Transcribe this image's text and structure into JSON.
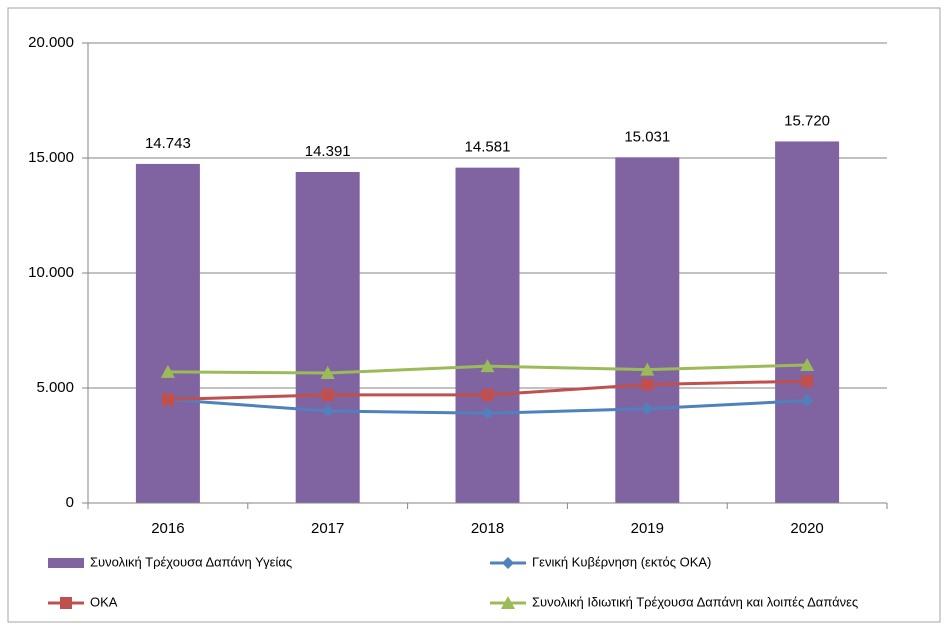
{
  "chart_data": {
    "type": "bar",
    "categories": [
      "2016",
      "2017",
      "2018",
      "2019",
      "2020"
    ],
    "series": [
      {
        "name": "Συνολική Τρέχουσα Δαπάνη Υγείας",
        "type": "bar",
        "color": "#8064a2",
        "marker": "none",
        "values": [
          14743,
          14391,
          14581,
          15031,
          15720
        ],
        "value_labels": [
          "14.743",
          "14.391",
          "14.581",
          "15.031",
          "15.720"
        ]
      },
      {
        "name": "Γενική Κυβέρνηση (εκτός ΟΚΑ)",
        "type": "line",
        "color": "#4f81bd",
        "marker": "diamond",
        "values": [
          4500,
          4000,
          3900,
          4100,
          4450
        ]
      },
      {
        "name": "ΟΚΑ",
        "type": "line",
        "color": "#c0504d",
        "marker": "square",
        "values": [
          4500,
          4700,
          4700,
          5150,
          5300
        ]
      },
      {
        "name": "Συνολική Ιδιωτική Τρέχουσα Δαπάνη και λοιπές Δαπάνες",
        "type": "line",
        "color": "#9bbb59",
        "marker": "triangle",
        "values": [
          5700,
          5650,
          5950,
          5800,
          6000
        ]
      }
    ],
    "ylim": [
      0,
      20000
    ],
    "yticks": [
      0,
      {
        "value": 5000,
        "label": "5.000"
      },
      {
        "value": 10000,
        "label": "10.000"
      },
      {
        "value": 15000,
        "label": "15.000"
      },
      {
        "value": 20000,
        "label": "20.000"
      }
    ],
    "grid": true,
    "legend": "bottom"
  }
}
